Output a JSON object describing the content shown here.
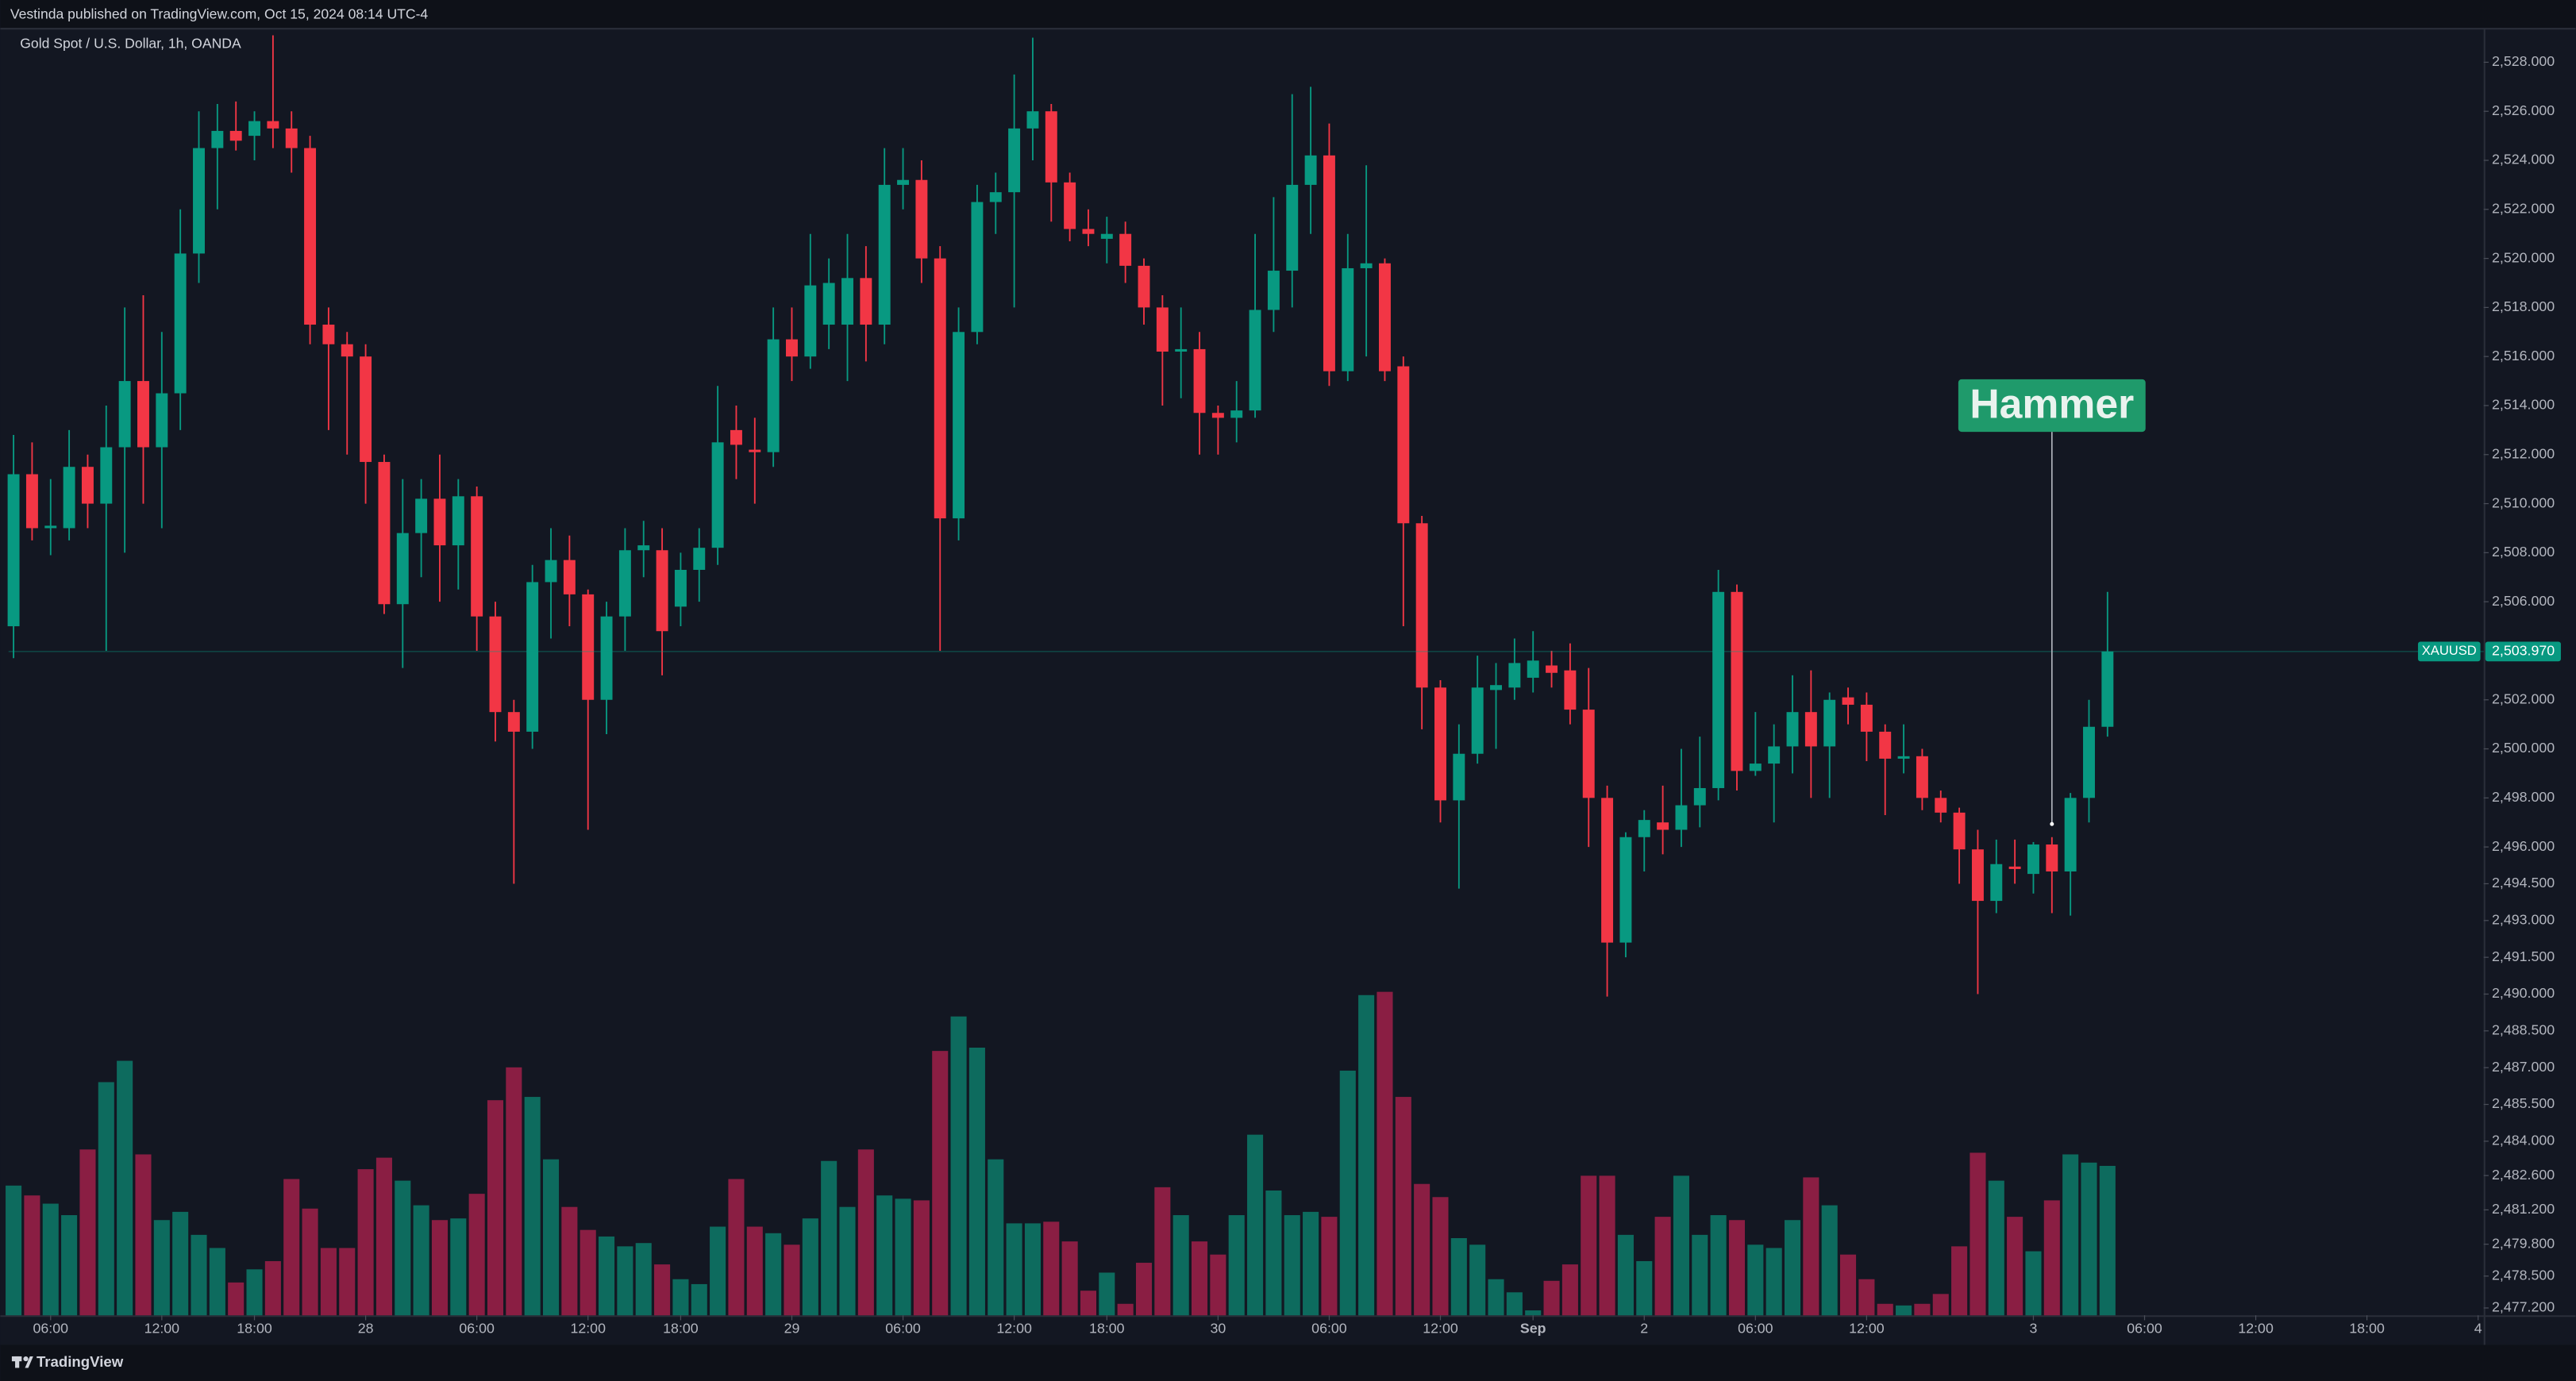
{
  "header": "Vestinda published on TradingView.com, Oct 15, 2024 08:14 UTC-4",
  "footer": "TradingView",
  "chart_data": {
    "type": "candlestick",
    "title": "Gold Spot / U.S. Dollar, 1h, OANDA",
    "symbol": "XAUUSD",
    "last_price": 2503.97,
    "last_price_label": "2,503.970",
    "up_color": "#089981",
    "down_color": "#f23645",
    "volume_up_color": "#0d6b5e",
    "volume_down_color": "#8a1e43",
    "grid": false,
    "xlim": [
      -0.27,
      133.3
    ],
    "xticks": [
      {
        "value": 2,
        "label": "06:00"
      },
      {
        "value": 8,
        "label": "12:00"
      },
      {
        "value": 13,
        "label": "18:00"
      },
      {
        "value": 19,
        "label": "28"
      },
      {
        "value": 25,
        "label": "06:00"
      },
      {
        "value": 31,
        "label": "12:00"
      },
      {
        "value": 36,
        "label": "18:00"
      },
      {
        "value": 42,
        "label": "29"
      },
      {
        "value": 48,
        "label": "06:00"
      },
      {
        "value": 54,
        "label": "12:00"
      },
      {
        "value": 59,
        "label": "18:00"
      },
      {
        "value": 65,
        "label": "30"
      },
      {
        "value": 71,
        "label": "06:00"
      },
      {
        "value": 77,
        "label": "12:00"
      },
      {
        "value": 82,
        "label": "Sep",
        "bold": true
      },
      {
        "value": 88,
        "label": "2"
      },
      {
        "value": 94,
        "label": "06:00"
      },
      {
        "value": 100,
        "label": "12:00"
      },
      {
        "value": 109,
        "label": "3"
      },
      {
        "value": 115,
        "label": "06:00"
      },
      {
        "value": 121,
        "label": "12:00"
      },
      {
        "value": 127,
        "label": "18:00"
      },
      {
        "value": 133,
        "label": "4"
      }
    ],
    "ylim": [
      2476.9,
      2529.4
    ],
    "yticks": [
      {
        "value": 2528,
        "label": "2,528.000"
      },
      {
        "value": 2526,
        "label": "2,526.000"
      },
      {
        "value": 2524,
        "label": "2,524.000"
      },
      {
        "value": 2522,
        "label": "2,522.000"
      },
      {
        "value": 2520,
        "label": "2,520.000"
      },
      {
        "value": 2518,
        "label": "2,518.000"
      },
      {
        "value": 2516,
        "label": "2,516.000"
      },
      {
        "value": 2514,
        "label": "2,514.000"
      },
      {
        "value": 2512,
        "label": "2,512.000"
      },
      {
        "value": 2510,
        "label": "2,510.000"
      },
      {
        "value": 2508,
        "label": "2,508.000"
      },
      {
        "value": 2506,
        "label": "2,506.000"
      },
      {
        "value": 2502,
        "label": "2,502.000"
      },
      {
        "value": 2500,
        "label": "2,500.000"
      },
      {
        "value": 2498,
        "label": "2,498.000"
      },
      {
        "value": 2496,
        "label": "2,496.000"
      },
      {
        "value": 2494.5,
        "label": "2,494.500"
      },
      {
        "value": 2493,
        "label": "2,493.000"
      },
      {
        "value": 2491.5,
        "label": "2,491.500"
      },
      {
        "value": 2490,
        "label": "2,490.000"
      },
      {
        "value": 2488.5,
        "label": "2,488.500"
      },
      {
        "value": 2487,
        "label": "2,487.000"
      },
      {
        "value": 2485.5,
        "label": "2,485.500"
      },
      {
        "value": 2484,
        "label": "2,484.000"
      },
      {
        "value": 2482.6,
        "label": "2,482.600"
      },
      {
        "value": 2481.2,
        "label": "2,481.200"
      },
      {
        "value": 2479.8,
        "label": "2,479.800"
      },
      {
        "value": 2478.5,
        "label": "2,478.500"
      },
      {
        "value": 2477.2,
        "label": "2,477.200"
      }
    ],
    "volume_ylim": [
      0,
      200
    ],
    "open": [
      2505,
      2511.2,
      2509,
      2509,
      2511.5,
      2510,
      2512.3,
      2515,
      2512.3,
      2514.5,
      2520.2,
      2524.5,
      2525.2,
      2525,
      2525.6,
      2525.3,
      2524.5,
      2517.3,
      2516.5,
      2516,
      2511.7,
      2505.9,
      2508.8,
      2510.2,
      2508.3,
      2510.3,
      2505.4,
      2501.5,
      2500.7,
      2506.8,
      2507.7,
      2506.3,
      2502,
      2505.4,
      2508.1,
      2508.1,
      2505.8,
      2507.3,
      2508.2,
      2513,
      2512.2,
      2512.1,
      2516.7,
      2516,
      2517.3,
      2517.3,
      2519.2,
      2517.3,
      2523,
      2523.2,
      2520,
      2509.4,
      2517,
      2522.3,
      2522.7,
      2525.3,
      2526,
      2523.1,
      2521.2,
      2520.8,
      2521,
      2519.7,
      2518,
      2516.2,
      2516.3,
      2513.7,
      2513.5,
      2513.8,
      2517.9,
      2519.5,
      2523,
      2524.2,
      2515.4,
      2519.6,
      2519.8,
      2515.6,
      2509.2,
      2502.5,
      2497.9,
      2499.8,
      2502.4,
      2502.5,
      2502.9,
      2503.4,
      2503.2,
      2501.6,
      2498,
      2492.1,
      2496.4,
      2497,
      2496.7,
      2497.7,
      2498.4,
      2506.4,
      2499.1,
      2499.4,
      2500.1,
      2501.5,
      2500.1,
      2502.1,
      2501.8,
      2500.7,
      2499.6,
      2499.7,
      2498,
      2497.4,
      2495.9,
      2493.8,
      2495.2,
      2494.9,
      2496.1,
      2495,
      2498,
      2500.9
    ],
    "high": [
      2512.8,
      2512.5,
      2511,
      2513,
      2512,
      2514,
      2518,
      2518.5,
      2517,
      2522,
      2526,
      2526.3,
      2526.4,
      2526,
      2529.1,
      2526,
      2525,
      2518,
      2517,
      2516.5,
      2512,
      2511,
      2511,
      2512,
      2511,
      2510.7,
      2506,
      2502,
      2507.5,
      2509,
      2508.7,
      2506.5,
      2506,
      2509,
      2509.3,
      2509,
      2508,
      2509,
      2514.8,
      2514,
      2513.5,
      2518,
      2518,
      2521,
      2520,
      2521,
      2520.5,
      2524.5,
      2524.5,
      2524,
      2520.5,
      2518,
      2523,
      2523.5,
      2527.5,
      2529,
      2526.3,
      2523.5,
      2522,
      2521.7,
      2521.5,
      2520,
      2518.5,
      2518,
      2517,
      2514,
      2515,
      2521,
      2522.5,
      2526.7,
      2527,
      2525.5,
      2521,
      2523.8,
      2520,
      2516,
      2509.5,
      2502.8,
      2501,
      2503.8,
      2503.5,
      2504.5,
      2504.8,
      2504,
      2504.3,
      2503.3,
      2498.5,
      2496.6,
      2497.5,
      2498.5,
      2500,
      2500.5,
      2507.3,
      2506.7,
      2501.5,
      2501,
      2503,
      2503.2,
      2502.3,
      2502.5,
      2502.3,
      2501,
      2501,
      2500,
      2498.3,
      2497.6,
      2496.7,
      2496.3,
      2496.3,
      2496.2,
      2496.4,
      2498.2,
      2502,
      2506.4
    ],
    "low": [
      2503.7,
      2508.5,
      2507.9,
      2508.5,
      2509,
      2504,
      2508,
      2510,
      2509,
      2513,
      2519,
      2522,
      2524.4,
      2524,
      2524.5,
      2523.5,
      2516.5,
      2513,
      2512,
      2510,
      2505.5,
      2503.3,
      2507,
      2506,
      2506.5,
      2504,
      2500.3,
      2494.5,
      2500,
      2504.5,
      2505,
      2496.7,
      2500.6,
      2504,
      2507,
      2503,
      2505,
      2506,
      2507.5,
      2511,
      2510,
      2511.5,
      2515,
      2515.5,
      2516.3,
      2515,
      2515.8,
      2516.5,
      2522,
      2519,
      2504,
      2508.5,
      2516.5,
      2521,
      2518,
      2524,
      2521.5,
      2520.7,
      2520.5,
      2519.8,
      2519,
      2517.3,
      2514,
      2514.3,
      2512,
      2512,
      2512.5,
      2513.5,
      2517,
      2518,
      2521,
      2514.8,
      2515,
      2516,
      2515,
      2505,
      2500.8,
      2497,
      2494.3,
      2499.4,
      2500,
      2502,
      2502.3,
      2502.5,
      2501,
      2496,
      2489.9,
      2491.5,
      2495,
      2495.7,
      2496,
      2496.8,
      2497.9,
      2498.3,
      2498.9,
      2497,
      2499,
      2498,
      2498,
      2501,
      2499.5,
      2497.3,
      2499,
      2497.5,
      2497,
      2494.5,
      2490,
      2493.3,
      2494.5,
      2494.1,
      2493.3,
      2493.2,
      2497,
      2500.5
    ],
    "close": [
      2511.2,
      2509,
      2509.1,
      2511.5,
      2510,
      2512.3,
      2515,
      2512.3,
      2514.5,
      2520.2,
      2524.5,
      2525.2,
      2524.8,
      2525.6,
      2525.3,
      2524.5,
      2517.3,
      2516.5,
      2516,
      2511.7,
      2505.9,
      2508.8,
      2510.2,
      2508.3,
      2510.3,
      2505.4,
      2501.5,
      2500.7,
      2506.8,
      2507.7,
      2506.3,
      2502,
      2505.4,
      2508.1,
      2508.3,
      2504.8,
      2507.3,
      2508.2,
      2512.5,
      2512.4,
      2512.1,
      2516.7,
      2516,
      2518.9,
      2519,
      2519.2,
      2517.3,
      2523,
      2523.2,
      2520,
      2509.4,
      2517,
      2522.3,
      2522.7,
      2525.3,
      2526,
      2523.1,
      2521.2,
      2521,
      2521,
      2519.7,
      2518,
      2516.2,
      2516.3,
      2513.7,
      2513.5,
      2513.8,
      2517.9,
      2519.5,
      2523,
      2524.2,
      2515.4,
      2519.6,
      2519.8,
      2515.4,
      2509.2,
      2502.5,
      2497.9,
      2499.8,
      2502.5,
      2502.6,
      2503.5,
      2503.6,
      2503.1,
      2501.6,
      2498,
      2492.1,
      2496.4,
      2497.1,
      2496.7,
      2497.7,
      2498.4,
      2506.4,
      2499.1,
      2499.4,
      2500.1,
      2501.5,
      2500.1,
      2502,
      2501.8,
      2500.7,
      2499.6,
      2499.7,
      2498,
      2497.4,
      2495.9,
      2493.8,
      2495.3,
      2495.1,
      2496.1,
      2495,
      2498,
      2500.9,
      2503.97
    ],
    "volume": [
      79,
      73,
      68,
      61,
      101,
      142,
      155,
      98,
      58,
      63,
      49,
      41,
      20,
      28,
      33,
      83,
      65,
      41,
      41,
      89,
      96,
      82,
      67,
      58,
      59,
      74,
      131,
      151,
      133,
      95,
      66,
      52,
      48,
      42,
      44,
      31,
      22,
      19,
      54,
      83,
      54,
      50,
      43,
      59,
      94,
      66,
      101,
      73,
      71,
      70,
      161,
      182,
      163,
      95,
      56,
      56,
      57,
      45,
      15,
      26,
      7,
      32,
      78,
      61,
      45,
      37,
      61,
      110,
      76,
      61,
      63,
      60,
      149,
      195,
      197,
      133,
      80,
      72,
      47,
      43,
      22,
      14,
      3,
      21,
      31,
      85,
      85,
      49,
      33,
      60,
      85,
      49,
      61,
      58,
      43,
      41,
      58,
      84,
      67,
      37,
      22,
      7,
      6,
      7,
      13,
      42,
      99,
      82,
      60,
      39,
      70,
      98,
      93,
      91
    ],
    "annotations": [
      {
        "text": "Hammer",
        "x": 110,
        "y": 2514
      }
    ]
  }
}
